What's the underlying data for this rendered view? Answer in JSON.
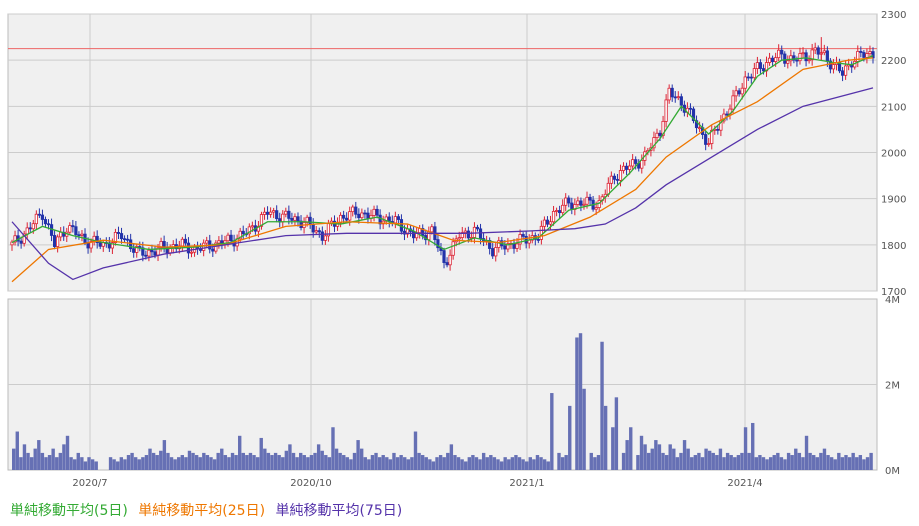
{
  "chart_data": [
    {
      "type": "candlestick",
      "y_ticks": [
        "2300",
        "2200",
        "2100",
        "2000",
        "1900",
        "1800",
        "1700"
      ],
      "ylim": [
        1700,
        2300
      ],
      "x_ticks": [
        "2020/7",
        "2020/10",
        "2021/1",
        "2021/4"
      ],
      "reference_line": 2225,
      "close_path": [
        [
          0,
          1800
        ],
        [
          5,
          1830
        ],
        [
          10,
          1870
        ],
        [
          14,
          1800
        ],
        [
          18,
          1840
        ],
        [
          24,
          1810
        ],
        [
          30,
          1800
        ],
        [
          36,
          1820
        ],
        [
          42,
          1780
        ],
        [
          48,
          1790
        ],
        [
          55,
          1800
        ],
        [
          60,
          1790
        ],
        [
          66,
          1800
        ],
        [
          72,
          1810
        ],
        [
          78,
          1830
        ],
        [
          84,
          1870
        ],
        [
          90,
          1860
        ],
        [
          96,
          1850
        ],
        [
          102,
          1820
        ],
        [
          108,
          1860
        ],
        [
          114,
          1870
        ],
        [
          120,
          1860
        ],
        [
          126,
          1850
        ],
        [
          132,
          1820
        ],
        [
          138,
          1830
        ],
        [
          142,
          1760
        ],
        [
          147,
          1820
        ],
        [
          152,
          1830
        ],
        [
          158,
          1790
        ],
        [
          163,
          1800
        ],
        [
          168,
          1810
        ],
        [
          173,
          1820
        ],
        [
          178,
          1870
        ],
        [
          183,
          1890
        ],
        [
          188,
          1890
        ],
        [
          193,
          1890
        ],
        [
          198,
          1950
        ],
        [
          203,
          1970
        ],
        [
          208,
          1990
        ],
        [
          213,
          2050
        ],
        [
          216,
          2130
        ],
        [
          220,
          2110
        ],
        [
          225,
          2060
        ],
        [
          229,
          2020
        ],
        [
          233,
          2070
        ],
        [
          237,
          2110
        ],
        [
          241,
          2160
        ],
        [
          245,
          2180
        ],
        [
          249,
          2200
        ],
        [
          253,
          2210
        ],
        [
          257,
          2200
        ],
        [
          261,
          2210
        ],
        [
          264,
          2220
        ],
        [
          267,
          2210
        ],
        [
          270,
          2190
        ],
        [
          273,
          2170
        ],
        [
          276,
          2200
        ],
        [
          279,
          2210
        ],
        [
          283,
          2215
        ]
      ],
      "highlighted_high": 2250,
      "series": [
        {
          "name": "単純移動平均(5日)",
          "color": "#33aa33",
          "points": [
            [
              0,
              1805
            ],
            [
              10,
              1840
            ],
            [
              20,
              1820
            ],
            [
              30,
              1805
            ],
            [
              45,
              1790
            ],
            [
              60,
              1795
            ],
            [
              72,
              1805
            ],
            [
              84,
              1850
            ],
            [
              96,
              1850
            ],
            [
              108,
              1845
            ],
            [
              120,
              1860
            ],
            [
              132,
              1830
            ],
            [
              142,
              1790
            ],
            [
              152,
              1815
            ],
            [
              163,
              1800
            ],
            [
              173,
              1815
            ],
            [
              183,
              1875
            ],
            [
              193,
              1890
            ],
            [
              203,
              1955
            ],
            [
              213,
              2030
            ],
            [
              220,
              2100
            ],
            [
              229,
              2040
            ],
            [
              237,
              2090
            ],
            [
              245,
              2165
            ],
            [
              253,
              2200
            ],
            [
              261,
              2205
            ],
            [
              270,
              2195
            ],
            [
              276,
              2190
            ],
            [
              283,
              2210
            ]
          ]
        },
        {
          "name": "単純移動平均(25日)",
          "color": "#ee7700",
          "points": [
            [
              0,
              1720
            ],
            [
              12,
              1790
            ],
            [
              30,
              1810
            ],
            [
              50,
              1795
            ],
            [
              70,
              1800
            ],
            [
              90,
              1840
            ],
            [
              110,
              1850
            ],
            [
              130,
              1845
            ],
            [
              145,
              1810
            ],
            [
              160,
              1805
            ],
            [
              175,
              1820
            ],
            [
              190,
              1860
            ],
            [
              205,
              1920
            ],
            [
              215,
              1990
            ],
            [
              230,
              2060
            ],
            [
              245,
              2110
            ],
            [
              260,
              2180
            ],
            [
              275,
              2200
            ],
            [
              283,
              2205
            ]
          ]
        },
        {
          "name": "単純移動平均(75日)",
          "color": "#5533aa",
          "points": [
            [
              0,
              1850
            ],
            [
              12,
              1760
            ],
            [
              20,
              1725
            ],
            [
              30,
              1750
            ],
            [
              50,
              1780
            ],
            [
              70,
              1800
            ],
            [
              90,
              1820
            ],
            [
              110,
              1825
            ],
            [
              130,
              1825
            ],
            [
              150,
              1825
            ],
            [
              170,
              1830
            ],
            [
              185,
              1835
            ],
            [
              195,
              1845
            ],
            [
              205,
              1880
            ],
            [
              215,
              1930
            ],
            [
              230,
              1990
            ],
            [
              245,
              2050
            ],
            [
              260,
              2100
            ],
            [
              283,
              2140
            ]
          ]
        }
      ]
    },
    {
      "type": "bar",
      "y_ticks": [
        "4M",
        "2M",
        "0M"
      ],
      "ylim": [
        0,
        4000000
      ],
      "x_ticks": [
        "2020/7",
        "2020/10",
        "2021/1",
        "2021/4"
      ],
      "values": [
        500000,
        900000,
        300000,
        600000,
        400000,
        300000,
        500000,
        700000,
        400000,
        300000,
        350000,
        500000,
        300000,
        400000,
        600000,
        800000,
        300000,
        250000,
        400000,
        300000,
        200000,
        300000,
        250000,
        200000,
        0,
        0,
        0,
        300000,
        250000,
        200000,
        300000,
        250000,
        350000,
        400000,
        300000,
        250000,
        300000,
        350000,
        500000,
        400000,
        350000,
        450000,
        700000,
        400000,
        300000,
        250000,
        300000,
        350000,
        300000,
        450000,
        400000,
        350000,
        300000,
        400000,
        350000,
        300000,
        250000,
        400000,
        500000,
        350000,
        300000,
        400000,
        350000,
        800000,
        400000,
        350000,
        400000,
        350000,
        300000,
        750000,
        500000,
        400000,
        350000,
        400000,
        350000,
        300000,
        450000,
        600000,
        400000,
        300000,
        400000,
        350000,
        300000,
        350000,
        400000,
        600000,
        450000,
        350000,
        300000,
        1000000,
        500000,
        400000,
        350000,
        300000,
        250000,
        400000,
        700000,
        500000,
        300000,
        250000,
        350000,
        400000,
        300000,
        350000,
        300000,
        250000,
        400000,
        300000,
        350000,
        300000,
        250000,
        300000,
        900000,
        400000,
        350000,
        300000,
        250000,
        200000,
        300000,
        350000,
        300000,
        400000,
        600000,
        350000,
        300000,
        250000,
        200000,
        300000,
        350000,
        300000,
        250000,
        400000,
        300000,
        350000,
        300000,
        250000,
        200000,
        300000,
        250000,
        300000,
        350000,
        300000,
        250000,
        200000,
        300000,
        250000,
        350000,
        300000,
        250000,
        200000,
        1800000,
        0,
        400000,
        300000,
        350000,
        1500000,
        0,
        3100000,
        3200000,
        1900000,
        0,
        400000,
        300000,
        350000,
        3000000,
        1500000,
        0,
        1000000,
        1700000,
        0,
        400000,
        700000,
        1000000,
        0,
        350000,
        800000,
        600000,
        400000,
        500000,
        700000,
        600000,
        400000,
        350000,
        600000,
        500000,
        300000,
        400000,
        700000,
        500000,
        300000,
        350000,
        400000,
        300000,
        500000,
        450000,
        400000,
        350000,
        500000,
        300000,
        400000,
        350000,
        300000,
        350000,
        400000,
        1000000,
        400000,
        1100000,
        300000,
        350000,
        300000,
        250000,
        300000,
        350000,
        400000,
        300000,
        250000,
        400000,
        350000,
        500000,
        400000,
        300000,
        800000,
        400000,
        350000,
        300000,
        400000,
        500000,
        350000,
        300000,
        250000,
        400000,
        300000,
        350000,
        300000,
        400000,
        300000,
        350000,
        250000,
        300000,
        400000
      ]
    }
  ],
  "legend": {
    "ma5": "単純移動平均(5日)",
    "ma25": "単純移動平均(25日)",
    "ma75": "単純移動平均(75日)"
  },
  "colors": {
    "up_candle": "#dd2233",
    "down_candle": "#2233aa",
    "volume_bar": "#6670b4",
    "panel_bg": "#f0f0f0",
    "grid": "#cccccc",
    "ref_line": "#ee6666"
  }
}
